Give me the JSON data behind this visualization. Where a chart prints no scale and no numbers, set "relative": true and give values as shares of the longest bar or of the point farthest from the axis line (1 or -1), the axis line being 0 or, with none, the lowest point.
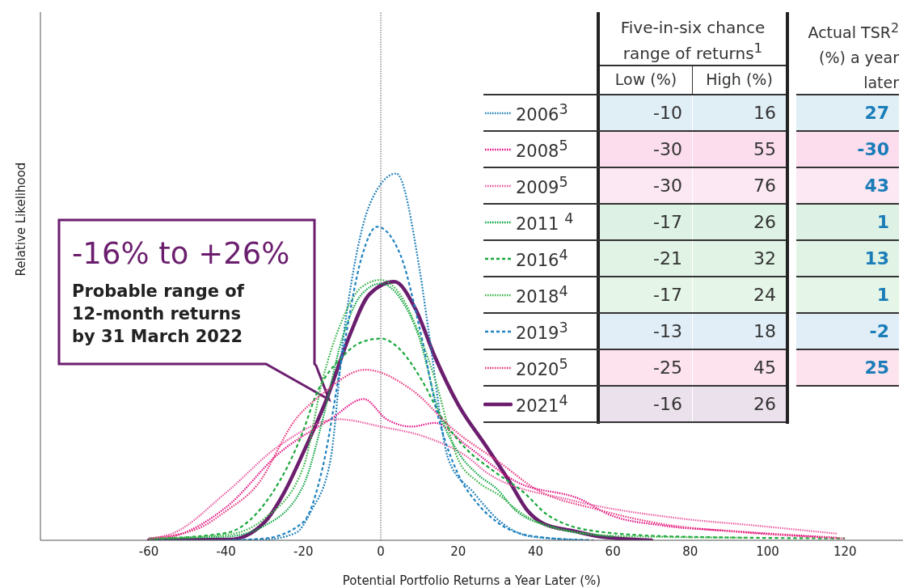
{
  "chart_data": {
    "type": "line",
    "relative": true,
    "xlabel": "Potential Portfolio Returns a Year Later (%)",
    "ylabel": "Relative Likelihood",
    "xlim": [
      -88,
      135
    ],
    "xticks": [
      -60,
      -40,
      -20,
      0,
      20,
      40,
      60,
      80,
      100,
      120
    ],
    "legend": "top right",
    "grid": false,
    "ref_lines": [
      {
        "axis": "x",
        "value": 0,
        "color": "#555555",
        "line_style": "dotted"
      }
    ],
    "series": [
      {
        "name": "2006$^{3}$",
        "color": "#1a7db8",
        "line_style": "dotted",
        "x": [
          -60,
          -40,
          -30,
          -22,
          -18,
          -13,
          -9.6,
          -7,
          -2.7,
          4,
          10,
          12.5,
          17.5,
          24,
          31,
          39,
          54
        ],
        "values": [
          0,
          0,
          0.002,
          0.02,
          0.08,
          0.22,
          0.56,
          0.74,
          0.92,
          1,
          0.74,
          0.56,
          0.22,
          0.13,
          0.05,
          0.01,
          0
        ]
      },
      {
        "name": "2008$^{5}$",
        "color": "#e0007a",
        "line_style": "dotted",
        "x": [
          -60,
          -54,
          -40,
          -26,
          -13,
          -4.4,
          1.5,
          8,
          14,
          22,
          35,
          52,
          59,
          73,
          91,
          118
        ],
        "values": [
          0.003,
          0.01,
          0.09,
          0.24,
          0.33,
          0.385,
          0.33,
          0.31,
          0.32,
          0.26,
          0.16,
          0.11,
          0.07,
          0.04,
          0.025,
          0.007
        ]
      },
      {
        "name": "2009$^{5}$",
        "color": "#e8509a",
        "line_style": "dotted",
        "x": [
          -60,
          -54,
          -40,
          -26,
          -11,
          0,
          12,
          22,
          28,
          49,
          77,
          97,
          118
        ],
        "values": [
          0.005,
          0.018,
          0.13,
          0.26,
          0.33,
          0.31,
          0.28,
          0.23,
          0.18,
          0.11,
          0.06,
          0.04,
          0.018
        ]
      },
      {
        "name": "2011 $^{4}$",
        "color": "#00a03c",
        "line_style": "dotted",
        "x": [
          -60,
          -40,
          -30,
          -20,
          -15,
          -10,
          -5,
          0,
          5,
          10,
          15,
          20,
          25,
          30,
          35,
          45,
          60
        ],
        "values": [
          0.005,
          0.01,
          0.04,
          0.15,
          0.33,
          0.55,
          0.67,
          0.7,
          0.66,
          0.55,
          0.35,
          0.24,
          0.18,
          0.14,
          0.08,
          0.035,
          0.01
        ]
      },
      {
        "name": "2016$^{4}$",
        "color": "#1aa83c",
        "line_style": "dashed",
        "x": [
          -60,
          -40,
          -30,
          -28,
          -20,
          -17,
          -10,
          -5,
          0,
          5,
          10.4,
          16,
          22,
          29,
          37,
          43,
          56,
          77,
          120
        ],
        "values": [
          0.003,
          0.02,
          0.1,
          0.13,
          0.3,
          0.39,
          0.5,
          0.54,
          0.55,
          0.52,
          0.44,
          0.33,
          0.25,
          0.19,
          0.13,
          0.07,
          0.024,
          0.01,
          0.005
        ]
      },
      {
        "name": "2018$^{4}$",
        "color": "#3cb44a",
        "line_style": "dotted",
        "x": [
          -60,
          -40,
          -30,
          -20,
          -15,
          -10,
          -5,
          0,
          5,
          10,
          14,
          20,
          25,
          31,
          35,
          45,
          63,
          95
        ],
        "values": [
          0.005,
          0.015,
          0.06,
          0.2,
          0.44,
          0.6,
          0.69,
          0.71,
          0.67,
          0.56,
          0.44,
          0.22,
          0.16,
          0.12,
          0.084,
          0.033,
          0.011,
          0.007
        ]
      },
      {
        "name": "2019$^{3}$",
        "color": "#1f82c0",
        "line_style": "dashed",
        "x": [
          -40,
          -30,
          -20,
          -15,
          -10,
          -5,
          -1,
          5,
          10,
          15,
          20,
          25,
          30,
          40,
          55
        ],
        "values": [
          0,
          0.005,
          0.05,
          0.2,
          0.5,
          0.77,
          0.855,
          0.78,
          0.58,
          0.33,
          0.18,
          0.1,
          0.05,
          0.01,
          0
        ]
      },
      {
        "name": "2020$^{5}$",
        "color": "#e8307a",
        "line_style": "dotted",
        "x": [
          -60,
          -47,
          -40,
          -32,
          -22,
          -15,
          -4,
          8,
          19,
          31,
          40,
          56,
          73,
          91,
          120
        ],
        "values": [
          0.005,
          0.033,
          0.08,
          0.15,
          0.33,
          0.4,
          0.465,
          0.41,
          0.3,
          0.21,
          0.14,
          0.084,
          0.044,
          0.024,
          0.005
        ]
      },
      {
        "name": "2021$^{4}$",
        "color": "#6b1e6e",
        "line_style": "solid",
        "x": [
          -60,
          -39,
          -30,
          -25,
          -20,
          -14,
          -8,
          -3,
          3.5,
          9,
          14,
          20,
          27,
          33,
          38,
          42,
          50,
          56,
          70
        ],
        "values": [
          0,
          0.002,
          0.05,
          0.13,
          0.24,
          0.385,
          0.56,
          0.67,
          0.705,
          0.63,
          0.5,
          0.37,
          0.26,
          0.165,
          0.08,
          0.046,
          0.025,
          0.011,
          0
        ]
      }
    ],
    "annotations": [
      "-16% to +26%",
      "Probable range of 12-month returns by 31 March 2022",
      "Five-in-six chance range of returns$^{1}$",
      "Low (%)",
      "High (%)",
      "Actual TSR$^{2}$ (%) a year later",
      "-10",
      "16",
      "-30",
      "55",
      "-30",
      "76",
      "-17",
      "26",
      "-21",
      "32",
      "-17",
      "24",
      "-13",
      "18",
      "-25",
      "45",
      "-16",
      "26",
      "27",
      "-30",
      "43",
      "1",
      "13",
      "1",
      "-2",
      "25"
    ]
  }
}
